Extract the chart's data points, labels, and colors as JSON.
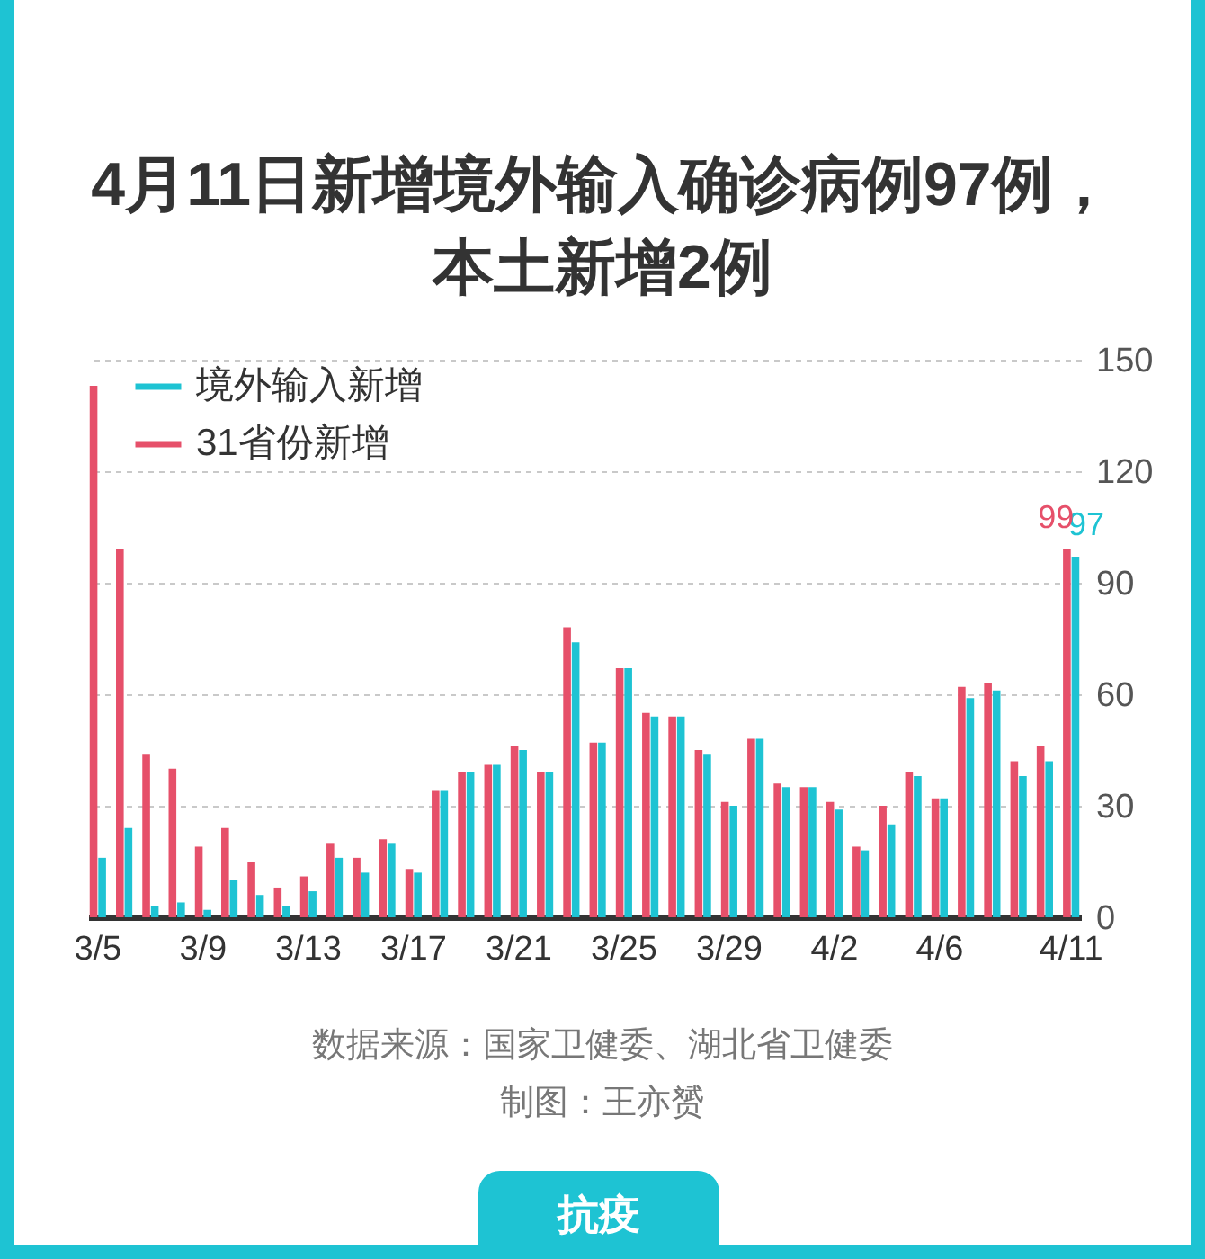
{
  "chart_data": {
    "type": "bar",
    "title": "4月11日新增境外输入确诊病例97例，本土新增2例",
    "categories": [
      "3/5",
      null,
      null,
      null,
      "3/9",
      null,
      null,
      null,
      "3/13",
      null,
      null,
      null,
      "3/17",
      null,
      null,
      null,
      "3/21",
      null,
      null,
      null,
      "3/25",
      null,
      null,
      null,
      "3/29",
      null,
      null,
      null,
      "4/2",
      null,
      null,
      null,
      "4/6",
      null,
      null,
      null,
      null,
      "4/11"
    ],
    "series": [
      {
        "name": "境外输入新增",
        "color": "#1ec3d3",
        "values": [
          16,
          24,
          3,
          4,
          2,
          10,
          6,
          3,
          7,
          16,
          12,
          20,
          12,
          34,
          39,
          41,
          45,
          39,
          74,
          47,
          67,
          54,
          54,
          44,
          30,
          48,
          35,
          35,
          29,
          18,
          25,
          38,
          32,
          59,
          61,
          38,
          42,
          97
        ],
        "value_labels": [
          null,
          null,
          null,
          null,
          null,
          null,
          null,
          null,
          null,
          null,
          null,
          null,
          null,
          null,
          null,
          null,
          null,
          null,
          null,
          null,
          null,
          null,
          null,
          null,
          null,
          null,
          null,
          null,
          null,
          null,
          null,
          null,
          null,
          null,
          null,
          null,
          null,
          "97"
        ]
      },
      {
        "name": "31省份新增",
        "color": "#e6506a",
        "values": [
          143,
          99,
          44,
          40,
          19,
          24,
          15,
          8,
          11,
          20,
          16,
          21,
          13,
          34,
          39,
          41,
          46,
          39,
          78,
          47,
          67,
          55,
          54,
          45,
          31,
          48,
          36,
          35,
          31,
          19,
          30,
          39,
          32,
          62,
          63,
          42,
          46,
          99
        ],
        "value_labels": [
          null,
          null,
          null,
          null,
          null,
          null,
          null,
          null,
          null,
          null,
          null,
          null,
          null,
          null,
          null,
          null,
          null,
          null,
          null,
          null,
          null,
          null,
          null,
          null,
          null,
          null,
          null,
          null,
          null,
          null,
          null,
          null,
          null,
          null,
          null,
          null,
          null,
          "99"
        ]
      }
    ],
    "ylim": [
      0,
      150
    ],
    "yticks": [
      0,
      30,
      60,
      90,
      120,
      150
    ],
    "grid": "y",
    "legend": "top left",
    "annotations": [
      "数据来源：国家卫健委、湖北省卫健委",
      "制图：王亦赟",
      "抗疫"
    ]
  }
}
